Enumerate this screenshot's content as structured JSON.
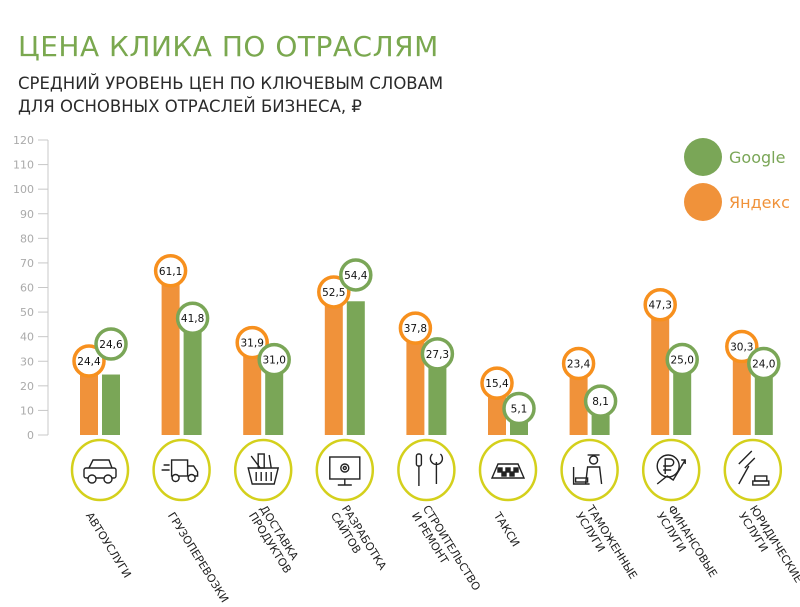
{
  "header": {
    "title": "ЦЕНА КЛИКА ПО ОТРАСЛЯМ",
    "subtitle_line1": "СРЕДНИЙ УРОВЕНЬ ЦЕН ПО КЛЮЧЕВЫМ СЛОВАМ",
    "subtitle_line2": "ДЛЯ ОСНОВНЫХ ОТРАСЛЕЙ БИЗНЕСА, ₽"
  },
  "chart_data": {
    "type": "bar",
    "title": "ЦЕНА КЛИКА ПО ОТРАСЛЯМ",
    "ylabel": "",
    "xlabel": "",
    "ylim": [
      0,
      120
    ],
    "yticks": [
      "0",
      "10",
      "20",
      "30",
      "40",
      "50",
      "60",
      "70",
      "80",
      "90",
      "100",
      "110",
      "120"
    ],
    "categories": [
      "АВТОУСЛУГИ",
      "ГРУЗОПЕРЕВОЗКИ",
      "ДОСТАВКА\nПРОДУКТОВ",
      "РАЗРАБОТКА\nСАЙТОВ",
      "СТРОИТЕЛЬСТВО\nИ РЕМОНТ",
      "ТАКСИ",
      "ТАМОЖЕННЫЕ\nУСЛУГИ",
      "ФИНАНСОВЫЕ\nУСЛУГИ",
      "ЮРИДИЧЕСКИЕ\nУСЛУГИ"
    ],
    "category_icons": [
      "car-icon",
      "truck-icon",
      "grocery-basket-icon",
      "monitor-gear-icon",
      "tools-icon",
      "taxi-sign-icon",
      "customs-officer-icon",
      "ruble-growth-icon",
      "gavel-icon"
    ],
    "series": [
      {
        "name": "Яндекс",
        "color": "#f0923a",
        "values": [
          24.4,
          61.1,
          31.9,
          52.5,
          37.8,
          15.4,
          23.4,
          47.3,
          30.3
        ],
        "labels": [
          "24,4",
          "61,1",
          "31,9",
          "52,5",
          "37,8",
          "15,4",
          "23,4",
          "47,3",
          "30,3"
        ]
      },
      {
        "name": "Google",
        "color": "#7aa657",
        "values": [
          24.6,
          41.8,
          31.0,
          54.4,
          27.3,
          5.1,
          8.1,
          25.0,
          24.0
        ],
        "labels": [
          "24,6",
          "41,8",
          "31,0",
          "54,4",
          "27,3",
          "5,1",
          "8,1",
          "25,0",
          "24,0"
        ]
      }
    ],
    "legend": [
      "Google",
      "Яндекс"
    ],
    "legend_position": "top-right",
    "grid": false
  },
  "colors": {
    "title": "#7aa84f",
    "icon_ring": "#d4d01c",
    "axis": "#c8c8c8"
  }
}
